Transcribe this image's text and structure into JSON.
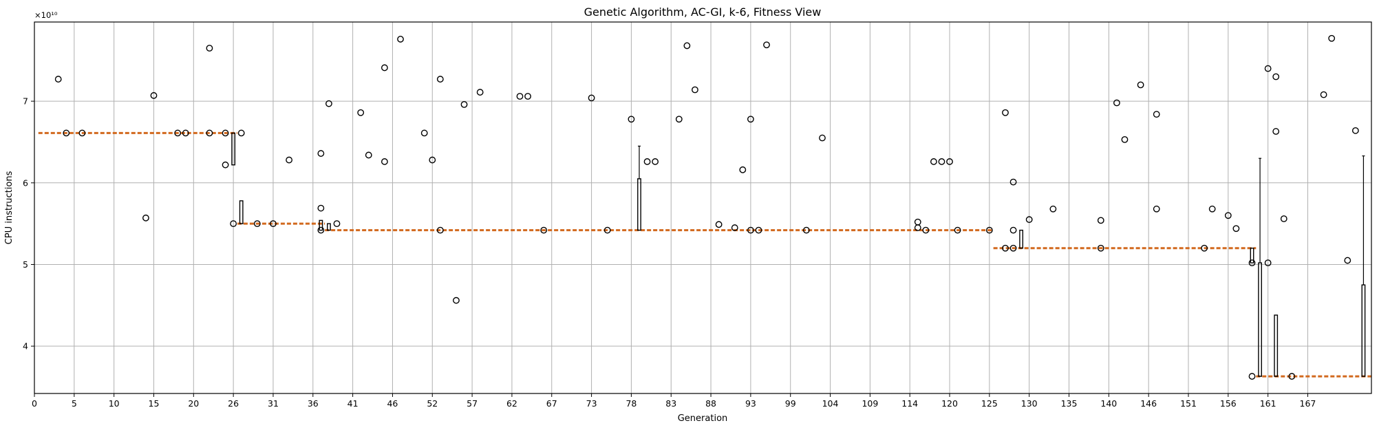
{
  "chart_data": {
    "type": "box",
    "title": "Genetic Algorithm, AC-GI, k-6, Fitness View",
    "xlabel": "Generation",
    "ylabel": "CPU instructions",
    "y_multiplier_label": "×10¹⁰",
    "xlim": [
      0,
      168
    ],
    "ylim": [
      3.42,
      7.97
    ],
    "y_ticks": [
      4,
      5,
      6,
      7
    ],
    "x_ticks": [
      {
        "pos": 0,
        "label": "0"
      },
      {
        "pos": 5,
        "label": "5"
      },
      {
        "pos": 10,
        "label": "10"
      },
      {
        "pos": 15,
        "label": "15"
      },
      {
        "pos": 20,
        "label": "20"
      },
      {
        "pos": 25,
        "label": "26"
      },
      {
        "pos": 30,
        "label": "31"
      },
      {
        "pos": 35,
        "label": "36"
      },
      {
        "pos": 40,
        "label": "41"
      },
      {
        "pos": 45,
        "label": "46"
      },
      {
        "pos": 50,
        "label": "52"
      },
      {
        "pos": 55,
        "label": "57"
      },
      {
        "pos": 60,
        "label": "62"
      },
      {
        "pos": 65,
        "label": "67"
      },
      {
        "pos": 70,
        "label": "73"
      },
      {
        "pos": 75,
        "label": "78"
      },
      {
        "pos": 80,
        "label": "83"
      },
      {
        "pos": 85,
        "label": "88"
      },
      {
        "pos": 90,
        "label": "93"
      },
      {
        "pos": 95,
        "label": "99"
      },
      {
        "pos": 100,
        "label": "104"
      },
      {
        "pos": 105,
        "label": "109"
      },
      {
        "pos": 110,
        "label": "114"
      },
      {
        "pos": 115,
        "label": "120"
      },
      {
        "pos": 120,
        "label": "125"
      },
      {
        "pos": 125,
        "label": "130"
      },
      {
        "pos": 130,
        "label": "135"
      },
      {
        "pos": 135,
        "label": "140"
      },
      {
        "pos": 140,
        "label": "146"
      },
      {
        "pos": 145,
        "label": "151"
      },
      {
        "pos": 150,
        "label": "156"
      },
      {
        "pos": 155,
        "label": "161"
      },
      {
        "pos": 160,
        "label": "167"
      }
    ],
    "median_segments": [
      {
        "x0": 0.5,
        "x1": 25.5,
        "y": 6.61
      },
      {
        "x0": 25.5,
        "x1": 36.5,
        "y": 5.5
      },
      {
        "x0": 36.5,
        "x1": 120.5,
        "y": 5.42
      },
      {
        "x0": 120.5,
        "x1": 153.5,
        "y": 5.2
      },
      {
        "x0": 153.5,
        "x1": 168,
        "y": 3.63
      }
    ],
    "boxes": [
      {
        "x": 25,
        "q1": 6.22,
        "q3": 6.61,
        "whislo": 6.22,
        "whishi": 6.61
      },
      {
        "x": 26,
        "q1": 5.5,
        "q3": 5.78,
        "whislo": 5.5,
        "whishi": 5.78
      },
      {
        "x": 36,
        "q1": 5.42,
        "q3": 5.54,
        "whislo": 5.42,
        "whishi": 5.54
      },
      {
        "x": 37,
        "q1": 5.42,
        "q3": 5.5,
        "whislo": 5.42,
        "whishi": 5.5
      },
      {
        "x": 76,
        "q1": 5.42,
        "q3": 6.05,
        "whislo": 5.42,
        "whishi": 6.45
      },
      {
        "x": 124,
        "q1": 5.2,
        "q3": 5.42,
        "whislo": 5.2,
        "whishi": 5.42
      },
      {
        "x": 153,
        "q1": 5.02,
        "q3": 5.2,
        "whislo": 5.02,
        "whishi": 5.2
      },
      {
        "x": 154,
        "q1": 3.63,
        "q3": 5.02,
        "whislo": 3.63,
        "whishi": 6.3
      },
      {
        "x": 156,
        "q1": 3.63,
        "q3": 4.38,
        "whislo": 3.63,
        "whishi": 4.38
      },
      {
        "x": 167,
        "q1": 3.63,
        "q3": 4.75,
        "whislo": 3.63,
        "whishi": 6.33
      }
    ],
    "fliers": [
      [
        3,
        7.27
      ],
      [
        4,
        6.61
      ],
      [
        6,
        6.61
      ],
      [
        14,
        5.57
      ],
      [
        15,
        7.07
      ],
      [
        18,
        6.61
      ],
      [
        19,
        6.61
      ],
      [
        22,
        7.65
      ],
      [
        22,
        6.61
      ],
      [
        24,
        6.61
      ],
      [
        24,
        6.22
      ],
      [
        25,
        5.5
      ],
      [
        26,
        6.61
      ],
      [
        28,
        5.5
      ],
      [
        30,
        5.5
      ],
      [
        32,
        6.28
      ],
      [
        36,
        6.36
      ],
      [
        36,
        5.69
      ],
      [
        36,
        5.42
      ],
      [
        37,
        6.97
      ],
      [
        38,
        5.5
      ],
      [
        41,
        6.86
      ],
      [
        42,
        6.34
      ],
      [
        44,
        7.41
      ],
      [
        44,
        6.26
      ],
      [
        46,
        7.76
      ],
      [
        49,
        6.61
      ],
      [
        50,
        6.28
      ],
      [
        51,
        7.27
      ],
      [
        51,
        5.42
      ],
      [
        53,
        4.56
      ],
      [
        54,
        6.96
      ],
      [
        56,
        7.11
      ],
      [
        61,
        7.06
      ],
      [
        62,
        7.06
      ],
      [
        64,
        5.42
      ],
      [
        70,
        7.04
      ],
      [
        72,
        5.42
      ],
      [
        75,
        6.78
      ],
      [
        77,
        6.26
      ],
      [
        78,
        6.26
      ],
      [
        81,
        6.78
      ],
      [
        82,
        7.68
      ],
      [
        83,
        7.14
      ],
      [
        86,
        5.49
      ],
      [
        88,
        5.45
      ],
      [
        89,
        6.16
      ],
      [
        90,
        6.78
      ],
      [
        90,
        5.42
      ],
      [
        91,
        5.42
      ],
      [
        92,
        7.69
      ],
      [
        97,
        5.42
      ],
      [
        99,
        6.55
      ],
      [
        111,
        5.52
      ],
      [
        111,
        5.45
      ],
      [
        112,
        5.42
      ],
      [
        113,
        6.26
      ],
      [
        114,
        6.26
      ],
      [
        115,
        6.26
      ],
      [
        116,
        5.42
      ],
      [
        120,
        5.42
      ],
      [
        122,
        6.86
      ],
      [
        122,
        5.2
      ],
      [
        123,
        6.01
      ],
      [
        123,
        5.42
      ],
      [
        123,
        5.2
      ],
      [
        125,
        5.55
      ],
      [
        128,
        5.68
      ],
      [
        134,
        5.54
      ],
      [
        134,
        5.2
      ],
      [
        136,
        6.98
      ],
      [
        137,
        6.53
      ],
      [
        139,
        7.2
      ],
      [
        141,
        6.84
      ],
      [
        141,
        5.68
      ],
      [
        147,
        5.2
      ],
      [
        148,
        5.68
      ],
      [
        150,
        5.6
      ],
      [
        151,
        5.44
      ],
      [
        153,
        3.63
      ],
      [
        153,
        5.02
      ],
      [
        155,
        7.4
      ],
      [
        155,
        5.02
      ],
      [
        156,
        7.3
      ],
      [
        156,
        6.63
      ],
      [
        157,
        5.56
      ],
      [
        158,
        3.63
      ],
      [
        162,
        7.08
      ],
      [
        163,
        7.77
      ],
      [
        165,
        5.05
      ],
      [
        166,
        6.64
      ]
    ]
  }
}
